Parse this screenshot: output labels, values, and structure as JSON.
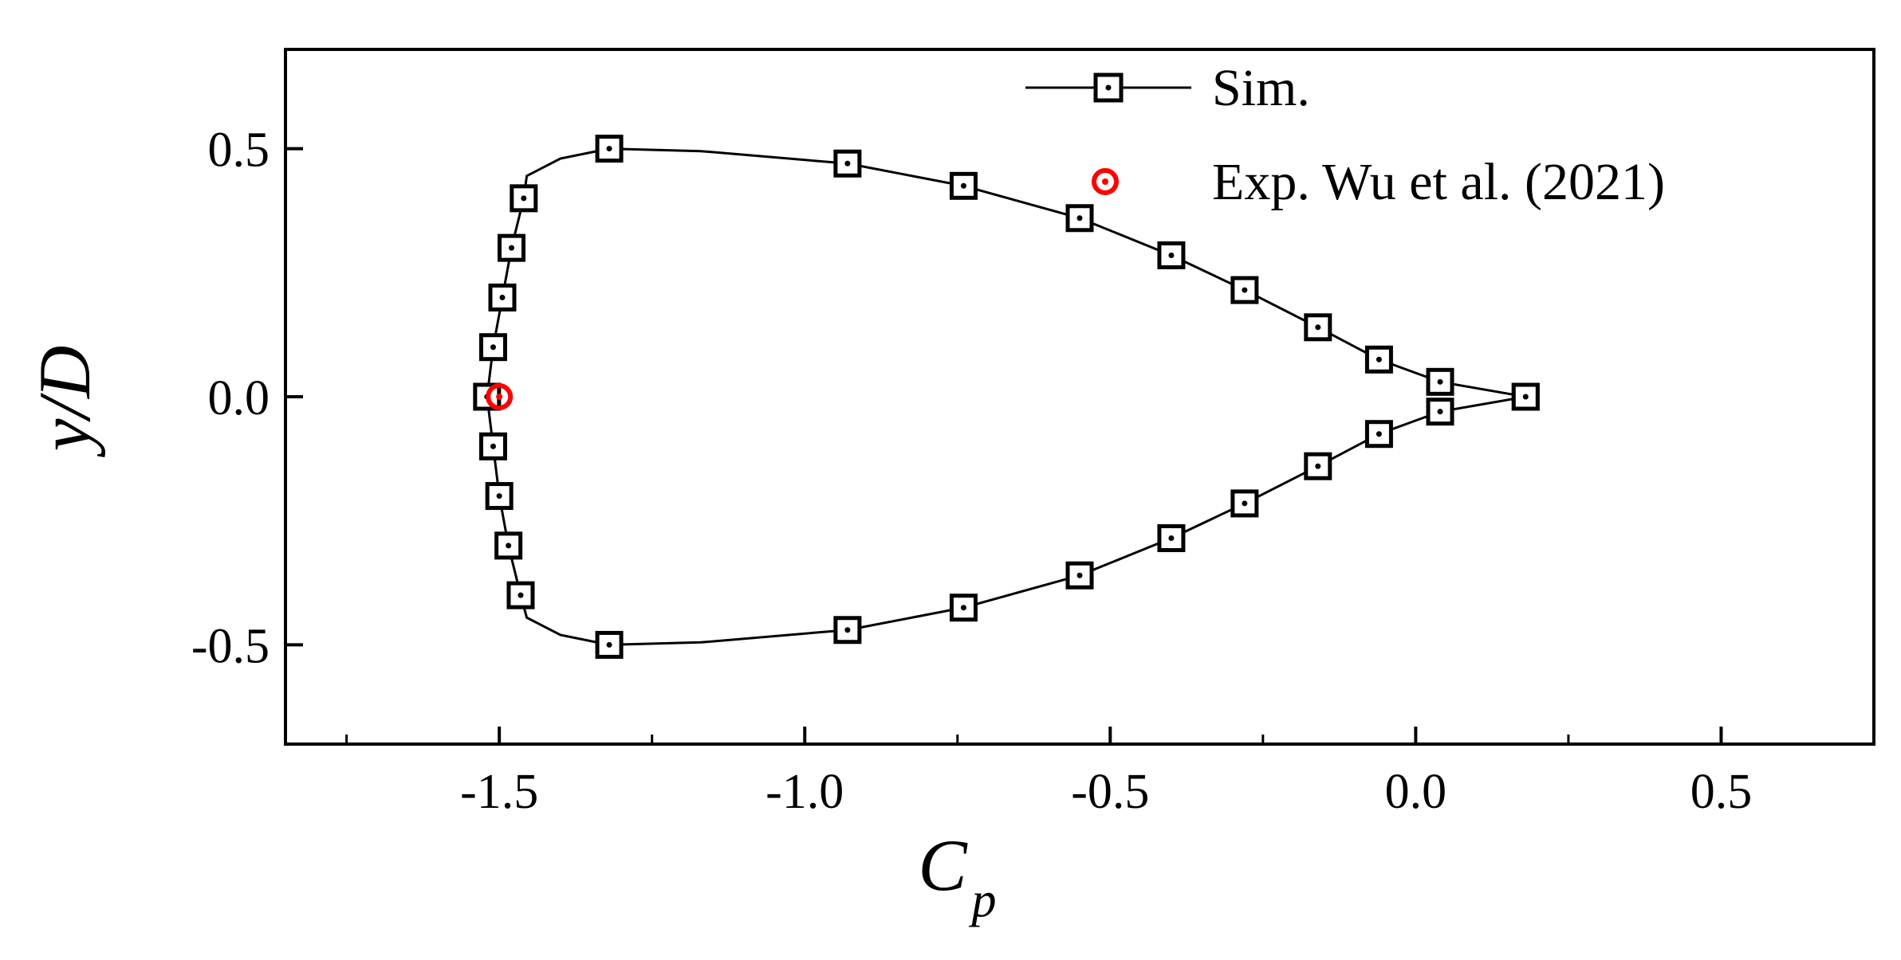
{
  "chart_data": {
    "type": "scatter",
    "title": "",
    "xlabel": "C",
    "xlabel_subscript": "p",
    "ylabel": "y/D",
    "xlim": [
      -1.85,
      0.75
    ],
    "ylim": [
      -0.7,
      0.7
    ],
    "xticks": [
      -1.5,
      -1.0,
      -0.5,
      0.0,
      0.5
    ],
    "xtick_labels": [
      "-1.5",
      "-1.0",
      "-0.5",
      "0.0",
      "0.5"
    ],
    "xminor": [
      -1.75,
      -1.25,
      -0.75,
      -0.25,
      0.25,
      0.75
    ],
    "yticks": [
      0.5,
      0.0,
      -0.5
    ],
    "ytick_labels": [
      "0.5",
      "0.0",
      "-0.5"
    ],
    "legend_position": "top-right",
    "series": [
      {
        "name": "Sim.",
        "marker": "square-dot",
        "line": true,
        "color": "#000000",
        "points": [
          {
            "x": 0.18,
            "y": 0.0
          },
          {
            "x": 0.04,
            "y": 0.03
          },
          {
            "x": -0.06,
            "y": 0.075
          },
          {
            "x": -0.16,
            "y": 0.14
          },
          {
            "x": -0.28,
            "y": 0.215
          },
          {
            "x": -0.4,
            "y": 0.285
          },
          {
            "x": -0.55,
            "y": 0.36
          },
          {
            "x": -0.74,
            "y": 0.425
          },
          {
            "x": -0.93,
            "y": 0.47
          },
          {
            "x": -1.32,
            "y": 0.5
          },
          {
            "x": -1.46,
            "y": 0.4
          },
          {
            "x": -1.48,
            "y": 0.3
          },
          {
            "x": -1.495,
            "y": 0.2
          },
          {
            "x": -1.51,
            "y": 0.1
          },
          {
            "x": -1.52,
            "y": 0.0
          },
          {
            "x": -1.51,
            "y": -0.1
          },
          {
            "x": -1.5,
            "y": -0.2
          },
          {
            "x": -1.485,
            "y": -0.3
          },
          {
            "x": -1.465,
            "y": -0.4
          },
          {
            "x": -1.32,
            "y": -0.5
          },
          {
            "x": -0.93,
            "y": -0.47
          },
          {
            "x": -0.74,
            "y": -0.425
          },
          {
            "x": -0.55,
            "y": -0.36
          },
          {
            "x": -0.4,
            "y": -0.285
          },
          {
            "x": -0.28,
            "y": -0.215
          },
          {
            "x": -0.16,
            "y": -0.14
          },
          {
            "x": -0.06,
            "y": -0.075
          },
          {
            "x": 0.04,
            "y": -0.03
          },
          {
            "x": 0.18,
            "y": 0.0
          }
        ],
        "curve": [
          {
            "x": 0.18,
            "y": 0.0
          },
          {
            "x": 0.04,
            "y": 0.03
          },
          {
            "x": -0.06,
            "y": 0.075
          },
          {
            "x": -0.16,
            "y": 0.14
          },
          {
            "x": -0.28,
            "y": 0.215
          },
          {
            "x": -0.4,
            "y": 0.285
          },
          {
            "x": -0.55,
            "y": 0.36
          },
          {
            "x": -0.74,
            "y": 0.425
          },
          {
            "x": -0.93,
            "y": 0.47
          },
          {
            "x": -1.17,
            "y": 0.495
          },
          {
            "x": -1.32,
            "y": 0.5
          },
          {
            "x": -1.4,
            "y": 0.48
          },
          {
            "x": -1.455,
            "y": 0.445
          },
          {
            "x": -1.46,
            "y": 0.4
          },
          {
            "x": -1.48,
            "y": 0.3
          },
          {
            "x": -1.495,
            "y": 0.2
          },
          {
            "x": -1.51,
            "y": 0.1
          },
          {
            "x": -1.52,
            "y": 0.0
          },
          {
            "x": -1.51,
            "y": -0.1
          },
          {
            "x": -1.5,
            "y": -0.2
          },
          {
            "x": -1.485,
            "y": -0.3
          },
          {
            "x": -1.465,
            "y": -0.4
          },
          {
            "x": -1.455,
            "y": -0.445
          },
          {
            "x": -1.4,
            "y": -0.48
          },
          {
            "x": -1.32,
            "y": -0.5
          },
          {
            "x": -1.17,
            "y": -0.495
          },
          {
            "x": -0.93,
            "y": -0.47
          },
          {
            "x": -0.74,
            "y": -0.425
          },
          {
            "x": -0.55,
            "y": -0.36
          },
          {
            "x": -0.4,
            "y": -0.285
          },
          {
            "x": -0.28,
            "y": -0.215
          },
          {
            "x": -0.16,
            "y": -0.14
          },
          {
            "x": -0.06,
            "y": -0.075
          },
          {
            "x": 0.04,
            "y": -0.03
          },
          {
            "x": 0.18,
            "y": 0.0
          }
        ]
      },
      {
        "name": "Exp. Wu et al. (2021)",
        "marker": "circle-dot",
        "line": false,
        "color": "#ff0000",
        "points": [
          {
            "x": -1.5,
            "y": 0.0
          }
        ]
      }
    ]
  }
}
